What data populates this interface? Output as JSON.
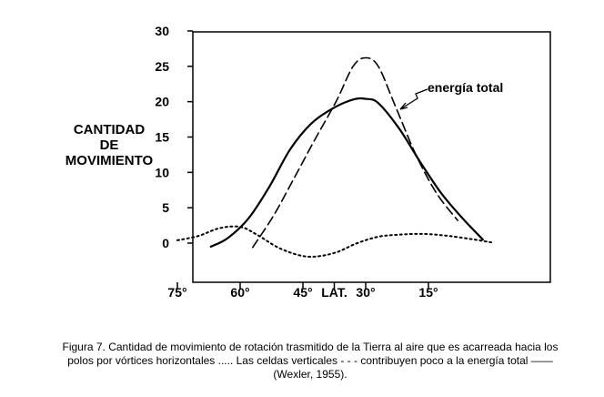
{
  "chart_data": {
    "type": "line",
    "ylabel_lines": [
      "CANTIDAD",
      "DE",
      "MOVIMIENTO"
    ],
    "yticks": [
      0,
      5,
      10,
      15,
      20,
      25,
      30
    ],
    "ylim": [
      -3,
      30
    ],
    "xlim": [
      78,
      0
    ],
    "xticks": [
      {
        "lat": 75,
        "label": "75°"
      },
      {
        "lat": 60,
        "label": "60°"
      },
      {
        "lat": 45,
        "label": "45°"
      },
      {
        "lat": 37.5,
        "label": "LAT."
      },
      {
        "lat": 30,
        "label": "30°"
      },
      {
        "lat": 15,
        "label": "15°"
      }
    ],
    "grid": false,
    "annotation": "energía total",
    "series": [
      {
        "id": "total",
        "style": "solid",
        "x": [
          67,
          63,
          58,
          53,
          48,
          43,
          38,
          33,
          30,
          27,
          22,
          17,
          12,
          7,
          2
        ],
        "y": [
          -0.5,
          0.7,
          3.5,
          8.0,
          13.3,
          16.9,
          19.0,
          20.3,
          20.4,
          19.8,
          16.2,
          11.5,
          7.1,
          3.6,
          0.5
        ]
      },
      {
        "id": "vertical-cells",
        "style": "dashed",
        "x": [
          57,
          52,
          47,
          42,
          37,
          33,
          30,
          27,
          23,
          18,
          13,
          8
        ],
        "y": [
          -0.6,
          3.9,
          9.3,
          14.8,
          20.1,
          25.0,
          26.2,
          25.0,
          19.5,
          12.5,
          7.0,
          3.2
        ]
      },
      {
        "id": "horizontal-vortices",
        "style": "dotted",
        "x": [
          75,
          70,
          65,
          60,
          56,
          51,
          46,
          42,
          37,
          32,
          27,
          22,
          16,
          10,
          4,
          0
        ],
        "y": [
          0.4,
          1.0,
          2.1,
          2.3,
          1.2,
          -0.6,
          -1.7,
          -1.9,
          -1.3,
          0.0,
          0.9,
          1.2,
          1.3,
          1.0,
          0.5,
          0.1
        ]
      }
    ]
  },
  "caption": {
    "line1": "Figura 7. Cantidad de movimiento de rotación trasmitido de la Tierra al aire que es acarreada hacia los",
    "line2": "polos por vórtices horizontales  .....  Las celdas verticales - - - contribuyen poco a la energía total ——",
    "line3": "(Wexler, 1955)."
  }
}
